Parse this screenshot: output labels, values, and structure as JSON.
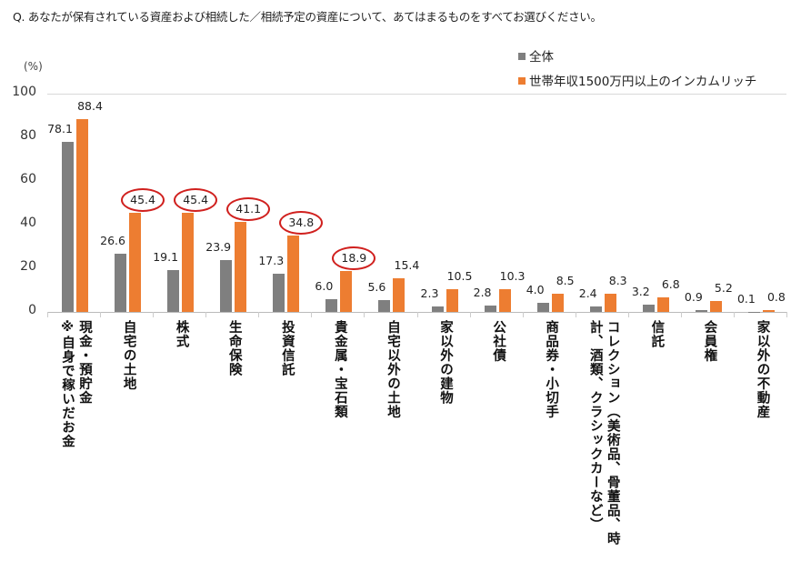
{
  "question": "Q. あなたが保有されている資産および相続した／相続予定の資産について、あてはまるものをすべてお選びください。",
  "chart_data": {
    "type": "bar",
    "ylabel": "(%)",
    "ylim": [
      0,
      100
    ],
    "yticks": [
      0,
      20,
      40,
      60,
      80,
      100
    ],
    "legend_position": "top-right",
    "categories": [
      "現金・預貯金\n※自身で稼いだお金",
      "自宅の土地",
      "株式",
      "生命保険",
      "投資信託",
      "貴金属・宝石類",
      "自宅以外の土地",
      "家以外の建物",
      "公社債",
      "商品券・小切手",
      "コレクション（美術品、骨董品、時\n計、酒類、クラシックカーなど）",
      "信託",
      "会員権",
      "家以外の不動産"
    ],
    "series": [
      {
        "name": "全体",
        "color": "#7f7f7f",
        "values": [
          78.1,
          26.6,
          19.1,
          23.9,
          17.3,
          6.0,
          5.6,
          2.3,
          2.8,
          4.0,
          2.4,
          3.2,
          0.9,
          0.1
        ]
      },
      {
        "name": "世帯年収1500万円以上のインカムリッチ",
        "color": "#ed7d31",
        "values": [
          88.4,
          45.4,
          45.4,
          41.1,
          34.8,
          18.9,
          15.4,
          10.5,
          10.3,
          8.5,
          8.3,
          6.8,
          5.2,
          0.8
        ]
      }
    ],
    "highlighted_series": 1,
    "highlighted_categories": [
      1,
      2,
      3,
      4,
      5
    ],
    "highlight_color": "#d0201e"
  }
}
